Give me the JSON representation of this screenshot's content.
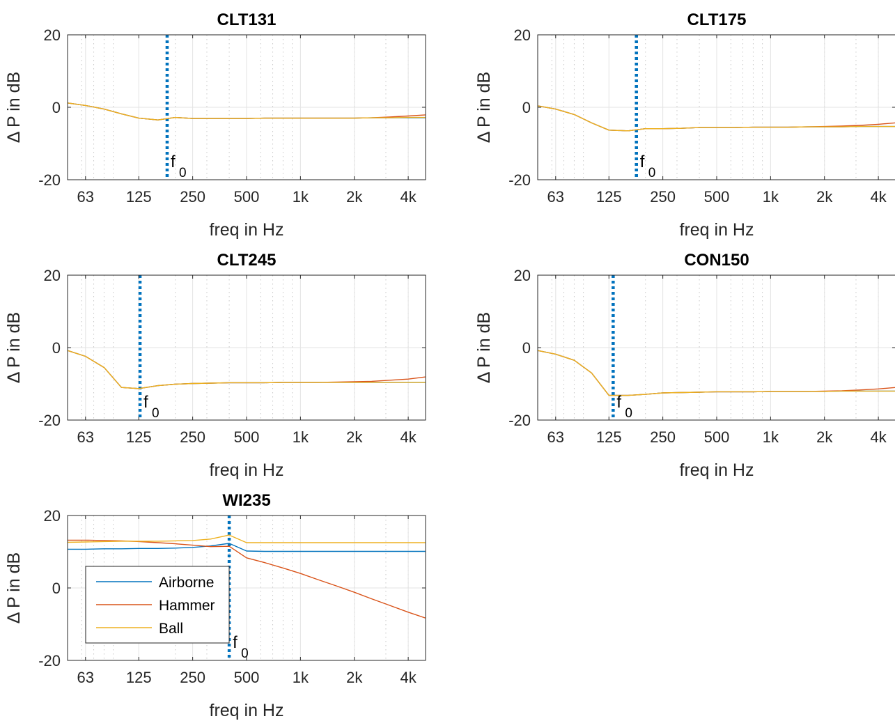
{
  "chart_data": [
    {
      "type": "line",
      "title": "CLT131",
      "xlabel": "freq in Hz",
      "ylabel": "Δ P in dB",
      "xscale": "log",
      "xlim": [
        50,
        5000
      ],
      "ylim": [
        -20,
        20
      ],
      "xticks": [
        63,
        125,
        250,
        500,
        1000,
        2000,
        4000
      ],
      "xticklabels": [
        "63",
        "125",
        "250",
        "500",
        "1k",
        "2k",
        "4k"
      ],
      "yticks": [
        -20,
        0,
        20
      ],
      "yticklabels": [
        "-20",
        "0",
        "20"
      ],
      "grid": true,
      "x": [
        50,
        63,
        80,
        100,
        125,
        160,
        200,
        250,
        315,
        400,
        500,
        630,
        800,
        1000,
        1250,
        1600,
        2000,
        2500,
        3150,
        4000,
        5000
      ],
      "series": [
        {
          "name": "Airborne",
          "color": "#0072BD",
          "values": [
            1.2,
            0.5,
            -0.5,
            -1.8,
            -3.0,
            -3.5,
            -2.8,
            -3.1,
            -3.1,
            -3.1,
            -3.1,
            -3.0,
            -3.0,
            -3.0,
            -3.0,
            -3.0,
            -3.0,
            -2.9,
            -2.9,
            -2.9,
            -2.9
          ]
        },
        {
          "name": "Hammer",
          "color": "#D95319",
          "values": [
            1.2,
            0.5,
            -0.5,
            -1.8,
            -3.0,
            -3.5,
            -2.8,
            -3.1,
            -3.1,
            -3.1,
            -3.1,
            -3.0,
            -3.0,
            -3.0,
            -3.0,
            -3.0,
            -3.0,
            -2.9,
            -2.7,
            -2.4,
            -2.1
          ]
        },
        {
          "name": "Ball",
          "color": "#EDB120",
          "values": [
            1.2,
            0.5,
            -0.5,
            -1.8,
            -3.0,
            -3.5,
            -2.8,
            -3.1,
            -3.1,
            -3.1,
            -3.1,
            -3.0,
            -3.0,
            -3.0,
            -3.0,
            -3.0,
            -3.0,
            -2.9,
            -2.9,
            -2.8,
            -2.8
          ]
        }
      ],
      "f0": {
        "x": 180,
        "label": "f",
        "sub": "0",
        "color": "#0072BD"
      }
    },
    {
      "type": "line",
      "title": "CLT175",
      "xlabel": "freq in Hz",
      "ylabel": "Δ P in dB",
      "xscale": "log",
      "xlim": [
        50,
        5000
      ],
      "ylim": [
        -20,
        20
      ],
      "xticks": [
        63,
        125,
        250,
        500,
        1000,
        2000,
        4000
      ],
      "xticklabels": [
        "63",
        "125",
        "250",
        "500",
        "1k",
        "2k",
        "4k"
      ],
      "yticks": [
        -20,
        0,
        20
      ],
      "yticklabels": [
        "-20",
        "0",
        "20"
      ],
      "grid": true,
      "x": [
        50,
        63,
        80,
        100,
        125,
        160,
        200,
        250,
        315,
        400,
        500,
        630,
        800,
        1000,
        1250,
        1600,
        2000,
        2500,
        3150,
        4000,
        5000
      ],
      "series": [
        {
          "name": "Airborne",
          "color": "#0072BD",
          "values": [
            0.4,
            -0.5,
            -2.0,
            -4.3,
            -6.3,
            -6.5,
            -5.9,
            -5.9,
            -5.8,
            -5.6,
            -5.6,
            -5.6,
            -5.5,
            -5.5,
            -5.5,
            -5.4,
            -5.4,
            -5.4,
            -5.3,
            -5.3,
            -5.3
          ]
        },
        {
          "name": "Hammer",
          "color": "#D95319",
          "values": [
            0.4,
            -0.5,
            -2.0,
            -4.3,
            -6.3,
            -6.5,
            -5.9,
            -5.9,
            -5.8,
            -5.6,
            -5.6,
            -5.6,
            -5.5,
            -5.5,
            -5.5,
            -5.4,
            -5.3,
            -5.2,
            -5.0,
            -4.7,
            -4.3
          ]
        },
        {
          "name": "Ball",
          "color": "#EDB120",
          "values": [
            0.4,
            -0.5,
            -2.0,
            -4.3,
            -6.3,
            -6.5,
            -5.9,
            -5.9,
            -5.8,
            -5.6,
            -5.6,
            -5.6,
            -5.5,
            -5.5,
            -5.5,
            -5.4,
            -5.4,
            -5.4,
            -5.3,
            -5.3,
            -5.3
          ]
        }
      ],
      "f0": {
        "x": 178,
        "label": "f",
        "sub": "0",
        "color": "#0072BD"
      }
    },
    {
      "type": "line",
      "title": "CLT245",
      "xlabel": "freq in Hz",
      "ylabel": "Δ P in dB",
      "xscale": "log",
      "xlim": [
        50,
        5000
      ],
      "ylim": [
        -20,
        20
      ],
      "xticks": [
        63,
        125,
        250,
        500,
        1000,
        2000,
        4000
      ],
      "xticklabels": [
        "63",
        "125",
        "250",
        "500",
        "1k",
        "2k",
        "4k"
      ],
      "yticks": [
        -20,
        0,
        20
      ],
      "yticklabels": [
        "-20",
        "0",
        "20"
      ],
      "grid": true,
      "x": [
        50,
        63,
        80,
        100,
        125,
        160,
        200,
        250,
        315,
        400,
        500,
        630,
        800,
        1000,
        1250,
        1600,
        2000,
        2500,
        3150,
        4000,
        5000
      ],
      "series": [
        {
          "name": "Airborne",
          "color": "#0072BD",
          "values": [
            -0.8,
            -2.4,
            -5.5,
            -11.0,
            -11.3,
            -10.5,
            -10.1,
            -9.9,
            -9.8,
            -9.7,
            -9.7,
            -9.7,
            -9.6,
            -9.6,
            -9.6,
            -9.6,
            -9.6,
            -9.6,
            -9.6,
            -9.6,
            -9.6
          ]
        },
        {
          "name": "Hammer",
          "color": "#D95319",
          "values": [
            -0.8,
            -2.4,
            -5.5,
            -11.0,
            -11.3,
            -10.5,
            -10.1,
            -9.9,
            -9.8,
            -9.7,
            -9.7,
            -9.7,
            -9.6,
            -9.6,
            -9.6,
            -9.5,
            -9.4,
            -9.3,
            -9.0,
            -8.7,
            -8.1
          ]
        },
        {
          "name": "Ball",
          "color": "#EDB120",
          "values": [
            -0.8,
            -2.4,
            -5.5,
            -11.0,
            -11.3,
            -10.5,
            -10.1,
            -9.9,
            -9.8,
            -9.7,
            -9.7,
            -9.7,
            -9.6,
            -9.6,
            -9.6,
            -9.6,
            -9.6,
            -9.6,
            -9.6,
            -9.6,
            -9.6
          ]
        }
      ],
      "f0": {
        "x": 127,
        "label": "f",
        "sub": "0",
        "color": "#0072BD"
      }
    },
    {
      "type": "line",
      "title": "CON150",
      "xlabel": "freq in Hz",
      "ylabel": "Δ P in dB",
      "xscale": "log",
      "xlim": [
        50,
        5000
      ],
      "ylim": [
        -20,
        20
      ],
      "xticks": [
        63,
        125,
        250,
        500,
        1000,
        2000,
        4000
      ],
      "xticklabels": [
        "63",
        "125",
        "250",
        "500",
        "1k",
        "2k",
        "4k"
      ],
      "yticks": [
        -20,
        0,
        20
      ],
      "yticklabels": [
        "-20",
        "0",
        "20"
      ],
      "grid": true,
      "x": [
        50,
        63,
        80,
        100,
        125,
        160,
        200,
        250,
        315,
        400,
        500,
        630,
        800,
        1000,
        1250,
        1600,
        2000,
        2500,
        3150,
        4000,
        5000
      ],
      "series": [
        {
          "name": "Airborne",
          "color": "#0072BD",
          "values": [
            -0.8,
            -1.8,
            -3.5,
            -7.0,
            -13.2,
            -13.2,
            -12.9,
            -12.5,
            -12.4,
            -12.3,
            -12.2,
            -12.2,
            -12.2,
            -12.1,
            -12.1,
            -12.1,
            -12.1,
            -12.0,
            -12.0,
            -12.0,
            -12.0
          ]
        },
        {
          "name": "Hammer",
          "color": "#D95319",
          "values": [
            -0.8,
            -1.8,
            -3.5,
            -7.0,
            -13.2,
            -13.2,
            -12.9,
            -12.5,
            -12.4,
            -12.3,
            -12.2,
            -12.2,
            -12.2,
            -12.1,
            -12.1,
            -12.1,
            -12.0,
            -11.9,
            -11.7,
            -11.4,
            -11.0
          ]
        },
        {
          "name": "Ball",
          "color": "#EDB120",
          "values": [
            -0.8,
            -1.8,
            -3.5,
            -7.0,
            -13.2,
            -13.2,
            -12.9,
            -12.5,
            -12.4,
            -12.3,
            -12.2,
            -12.2,
            -12.2,
            -12.1,
            -12.1,
            -12.1,
            -12.1,
            -12.0,
            -12.0,
            -12.0,
            -12.0
          ]
        }
      ],
      "f0": {
        "x": 132,
        "label": "f",
        "sub": "0",
        "color": "#0072BD"
      }
    },
    {
      "type": "line",
      "title": "WI235",
      "xlabel": "freq in Hz",
      "ylabel": "Δ P in dB",
      "xscale": "log",
      "xlim": [
        50,
        5000
      ],
      "ylim": [
        -20,
        20
      ],
      "xticks": [
        63,
        125,
        250,
        500,
        1000,
        2000,
        4000
      ],
      "xticklabels": [
        "63",
        "125",
        "250",
        "500",
        "1k",
        "2k",
        "4k"
      ],
      "yticks": [
        -20,
        0,
        20
      ],
      "yticklabels": [
        "-20",
        "0",
        "20"
      ],
      "grid": true,
      "legend": {
        "location": "lower-left",
        "entries": [
          "Airborne",
          "Hammer",
          "Ball"
        ]
      },
      "x": [
        50,
        63,
        80,
        100,
        125,
        160,
        200,
        250,
        315,
        400,
        500,
        630,
        800,
        1000,
        1250,
        1600,
        2000,
        2500,
        3150,
        4000,
        5000
      ],
      "series": [
        {
          "name": "Airborne",
          "color": "#0072BD",
          "values": [
            10.7,
            10.7,
            10.8,
            10.8,
            10.9,
            10.9,
            11.0,
            11.2,
            11.6,
            12.3,
            10.2,
            10.1,
            10.1,
            10.1,
            10.1,
            10.1,
            10.1,
            10.1,
            10.1,
            10.1,
            10.1
          ]
        },
        {
          "name": "Hammer",
          "color": "#D95319",
          "values": [
            13.2,
            13.2,
            13.1,
            13.0,
            12.8,
            12.5,
            12.2,
            11.8,
            11.4,
            11.5,
            8.3,
            7.0,
            5.5,
            4.0,
            2.3,
            0.5,
            -1.2,
            -3.0,
            -4.8,
            -6.7,
            -8.3
          ]
        },
        {
          "name": "Ball",
          "color": "#EDB120",
          "values": [
            12.6,
            12.7,
            12.8,
            12.9,
            12.9,
            12.9,
            13.0,
            13.1,
            13.5,
            14.6,
            12.5,
            12.5,
            12.5,
            12.5,
            12.5,
            12.5,
            12.5,
            12.5,
            12.5,
            12.5,
            12.5
          ]
        }
      ],
      "f0": {
        "x": 400,
        "label": "f",
        "sub": "0",
        "color": "#0072BD"
      }
    }
  ]
}
